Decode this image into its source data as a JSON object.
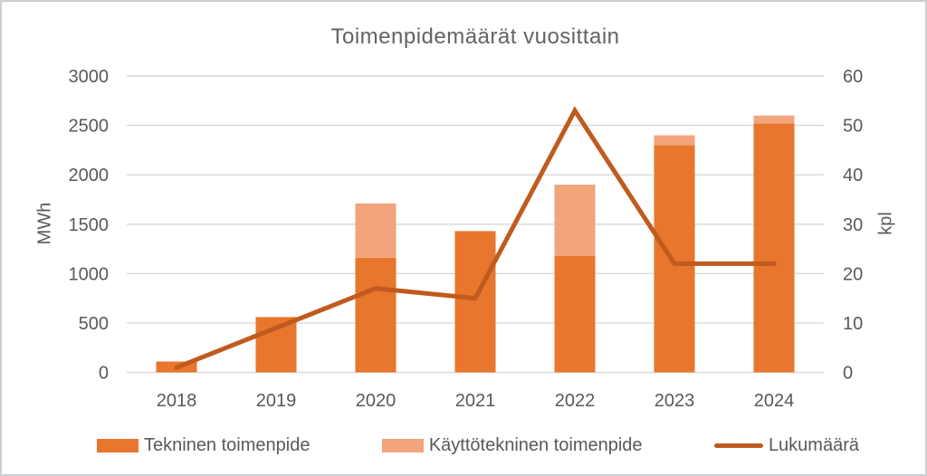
{
  "chart_data": {
    "type": "combo-stacked-bar-line",
    "title": "Toimenpidemäärät vuosittain",
    "categories": [
      "2018",
      "2019",
      "2020",
      "2021",
      "2022",
      "2023",
      "2024"
    ],
    "bar_series": [
      {
        "name": "Tekninen toimenpide",
        "color": "#E8762C",
        "axis": "left",
        "values": [
          110,
          560,
          1160,
          1430,
          1180,
          2300,
          2520
        ]
      },
      {
        "name": "Käyttötekninen toimenpide",
        "color": "#F2A47C",
        "axis": "left",
        "values": [
          0,
          0,
          550,
          0,
          720,
          100,
          80
        ]
      }
    ],
    "line_series": {
      "name": "Lukumäärä",
      "color": "#C05A1E",
      "axis": "right",
      "values": [
        1,
        9,
        17,
        15,
        53,
        22,
        22
      ]
    },
    "left_axis": {
      "label": "MWh",
      "min": 0,
      "max": 3000,
      "step": 500,
      "ticks": [
        0,
        500,
        1000,
        1500,
        2000,
        2500,
        3000
      ]
    },
    "right_axis": {
      "label": "kpl",
      "min": 0,
      "max": 60,
      "step": 10,
      "ticks": [
        0,
        10,
        20,
        30,
        40,
        50,
        60
      ]
    },
    "style": {
      "gridline_color": "#D9D9D9",
      "text_color": "#595959",
      "title_color": "#636363",
      "background": "#FFFFFF",
      "frame_border": "#CCD0D2"
    },
    "legend_position": "bottom",
    "grid": "horizontal-only"
  }
}
